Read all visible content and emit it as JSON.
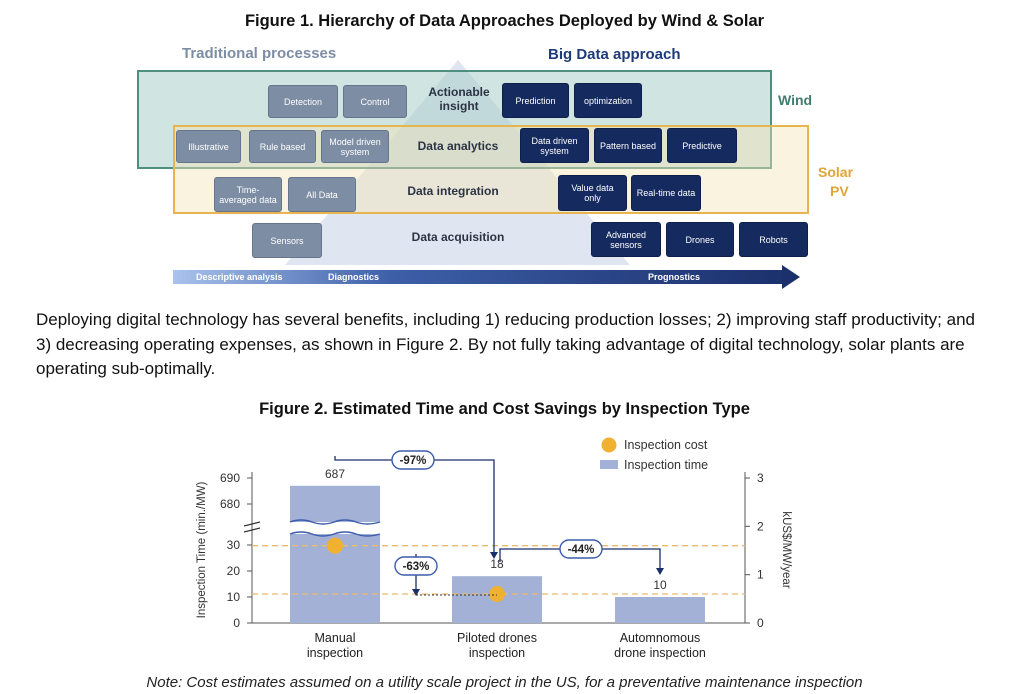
{
  "figure1": {
    "title": "Figure 1. Hierarchy of Data Approaches Deployed by Wind & Solar",
    "traditional_label": "Traditional processes",
    "bigdata_label": "Big Data approach",
    "wind_label": "Wind",
    "solar_label_line1": "Solar",
    "solar_label_line2": "PV",
    "layers": {
      "actionable": "Actionable insight",
      "analytics": "Data analytics",
      "integration": "Data integration",
      "acquisition": "Data acquisition"
    },
    "traditional_boxes": {
      "detection": "Detection",
      "control": "Control",
      "illustrative": "Illustrative",
      "rule_based": "Rule based",
      "model_driven": "Model driven system",
      "time_averaged": "Time-averaged data",
      "all_data": "All Data",
      "sensors": "Sensors"
    },
    "bigdata_boxes": {
      "prediction": "Prediction",
      "optimization": "optimization",
      "data_driven": "Data driven system",
      "pattern_based": "Pattern based",
      "predictive": "Predictive",
      "value_data_only": "Value data only",
      "realtime_data": "Real-time data",
      "advanced_sensors": "Advanced sensors",
      "drones": "Drones",
      "robots": "Robots"
    },
    "arrow_labels": {
      "descriptive": "Descriptive analysis",
      "diagnostics": "Diagnostics",
      "prognostics": "Prognostics"
    },
    "colors": {
      "wind_border": "#4f8f7d",
      "wind_fill": "#c7dedb",
      "solar_border": "#e7b550",
      "solar_fill": "#f5e7c3",
      "navy": "#152a5f",
      "gray_box": "#7d8da4",
      "traditional_text": "#7d8da4",
      "bigdata_text": "#1f3a7a",
      "wind_text": "#3c7f6f",
      "solar_text": "#e0a437"
    }
  },
  "paragraph": "Deploying digital technology has several benefits, including 1) reducing production losses; 2) improving staff productivity; and 3) decreasing operating expenses, as shown in Figure 2. By not fully taking advantage of digital technology, solar plants are operating sub-optimally.",
  "figure2_title": "Figure 2. Estimated Time and Cost Savings  by Inspection Type",
  "note": "Note: Cost estimates assumed on a utility scale project in the US, for a preventative maintenance inspection",
  "chart_data": {
    "type": "bar",
    "categories": [
      "Manual inspection",
      "Piloted drones inspection",
      "Automnomous drone inspection"
    ],
    "category_lines": [
      [
        "Manual",
        "inspection"
      ],
      [
        "Piloted drones",
        "inspection"
      ],
      [
        "Automnomous",
        "drone inspection"
      ]
    ],
    "series": [
      {
        "name": "Inspection time",
        "values": [
          687,
          18,
          10
        ],
        "axis": "left",
        "color": "#a3b1d6"
      },
      {
        "name": "Inspection cost",
        "values": [
          1.6,
          0.6,
          null
        ],
        "axis": "right",
        "color": "#f0b130"
      }
    ],
    "data_labels": [
      "687",
      "18",
      "10"
    ],
    "ylabel": "Inspection Time (min./MW)",
    "y2label": "kUS$/MW/year",
    "ylim_lower": [
      0,
      30
    ],
    "ylim_upper": [
      680,
      690
    ],
    "left_ticks": [
      "0",
      "10",
      "20",
      "30",
      "680",
      "690"
    ],
    "left_tick_values": [
      0,
      10,
      20,
      30,
      680,
      690
    ],
    "y2lim": [
      0,
      3
    ],
    "right_ticks": [
      "0",
      "1",
      "2",
      "3"
    ],
    "right_tick_values": [
      0,
      1,
      2,
      3
    ],
    "annotations": [
      "-97%",
      "-63%",
      "-44%"
    ],
    "reference_lines": [
      {
        "axis": "right",
        "value": 1.6
      },
      {
        "axis": "right",
        "value": 0.6
      }
    ],
    "legend": [
      "Inspection cost",
      "Inspection time"
    ],
    "legend_position": "top-right"
  }
}
